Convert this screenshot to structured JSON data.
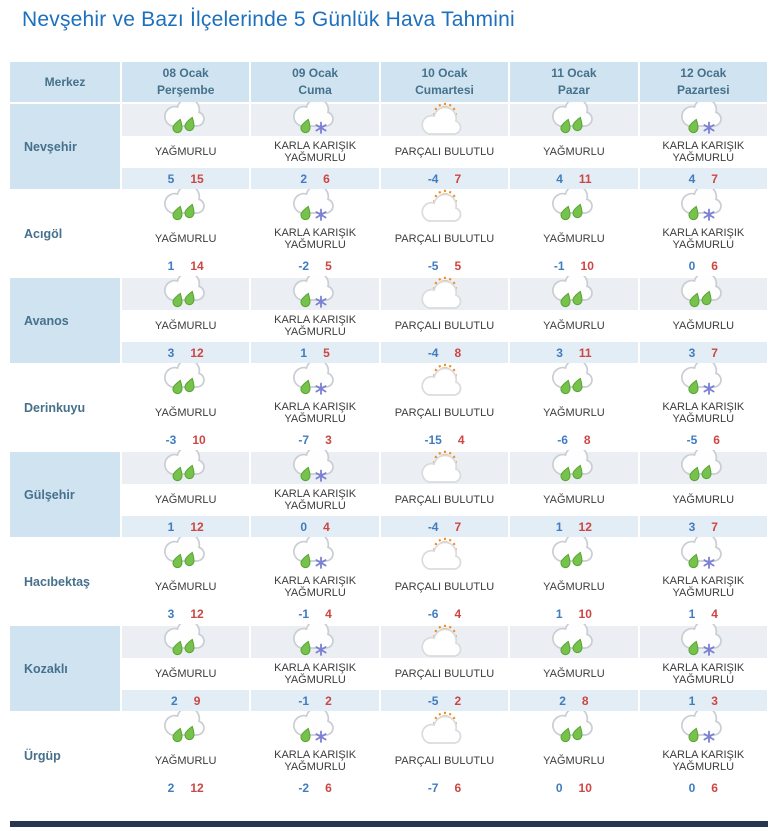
{
  "title": "Nevşehir ve Bazı İlçelerinde 5 Günlük Hava Tahmini",
  "colors": {
    "title_text": "#1d70bd",
    "header_bg": "#cfe4f0",
    "header_text": "#46708c",
    "shaded_icon_bg": "#ebeff4",
    "shaded_temp_bg": "#e3edf5",
    "temp_min": "#3f7cc0",
    "temp_max": "#cc4643",
    "footer_bar": "#27374f"
  },
  "table": {
    "city_header": "Merkez",
    "days": [
      {
        "date": "08 Ocak",
        "weekday": "Perşembe"
      },
      {
        "date": "09 Ocak",
        "weekday": "Cuma"
      },
      {
        "date": "10 Ocak",
        "weekday": "Cumartesi"
      },
      {
        "date": "11 Ocak",
        "weekday": "Pazar"
      },
      {
        "date": "12 Ocak",
        "weekday": "Pazartesi"
      }
    ],
    "icon_names": [
      "rain-icon",
      "sleet-icon",
      "partly-cloudy-icon"
    ],
    "rows": [
      {
        "city": "Nevşehir",
        "cells": [
          {
            "icon": "rain",
            "condition": "YAĞMURLU",
            "min": 5,
            "max": 15
          },
          {
            "icon": "sleet",
            "condition": "KARLA KARIŞIK YAĞMURLU",
            "min": 2,
            "max": 6
          },
          {
            "icon": "partly-cloudy",
            "condition": "PARÇALI BULUTLU",
            "min": -4,
            "max": 7
          },
          {
            "icon": "rain",
            "condition": "YAĞMURLU",
            "min": 4,
            "max": 11
          },
          {
            "icon": "sleet",
            "condition": "KARLA KARIŞIK YAĞMURLU",
            "min": 4,
            "max": 7
          }
        ]
      },
      {
        "city": "Acıgöl",
        "cells": [
          {
            "icon": "rain",
            "condition": "YAĞMURLU",
            "min": 1,
            "max": 14
          },
          {
            "icon": "sleet",
            "condition": "KARLA KARIŞIK YAĞMURLU",
            "min": -2,
            "max": 5
          },
          {
            "icon": "partly-cloudy",
            "condition": "PARÇALI BULUTLU",
            "min": -5,
            "max": 5
          },
          {
            "icon": "rain",
            "condition": "YAĞMURLU",
            "min": -1,
            "max": 10
          },
          {
            "icon": "sleet",
            "condition": "KARLA KARIŞIK YAĞMURLU",
            "min": 0,
            "max": 6
          }
        ]
      },
      {
        "city": "Avanos",
        "cells": [
          {
            "icon": "rain",
            "condition": "YAĞMURLU",
            "min": 3,
            "max": 12
          },
          {
            "icon": "sleet",
            "condition": "KARLA KARIŞIK YAĞMURLU",
            "min": 1,
            "max": 5
          },
          {
            "icon": "partly-cloudy",
            "condition": "PARÇALI BULUTLU",
            "min": -4,
            "max": 8
          },
          {
            "icon": "rain",
            "condition": "YAĞMURLU",
            "min": 3,
            "max": 11
          },
          {
            "icon": "rain",
            "condition": "YAĞMURLU",
            "min": 3,
            "max": 7
          }
        ]
      },
      {
        "city": "Derinkuyu",
        "cells": [
          {
            "icon": "rain",
            "condition": "YAĞMURLU",
            "min": -3,
            "max": 10
          },
          {
            "icon": "sleet",
            "condition": "KARLA KARIŞIK YAĞMURLU",
            "min": -7,
            "max": 3
          },
          {
            "icon": "partly-cloudy",
            "condition": "PARÇALI BULUTLU",
            "min": -15,
            "max": 4
          },
          {
            "icon": "rain",
            "condition": "YAĞMURLU",
            "min": -6,
            "max": 8
          },
          {
            "icon": "sleet",
            "condition": "KARLA KARIŞIK YAĞMURLU",
            "min": -5,
            "max": 6
          }
        ]
      },
      {
        "city": "Gülşehir",
        "cells": [
          {
            "icon": "rain",
            "condition": "YAĞMURLU",
            "min": 1,
            "max": 12
          },
          {
            "icon": "sleet",
            "condition": "KARLA KARIŞIK YAĞMURLU",
            "min": 0,
            "max": 4
          },
          {
            "icon": "partly-cloudy",
            "condition": "PARÇALI BULUTLU",
            "min": -4,
            "max": 7
          },
          {
            "icon": "rain",
            "condition": "YAĞMURLU",
            "min": 1,
            "max": 12
          },
          {
            "icon": "rain",
            "condition": "YAĞMURLU",
            "min": 3,
            "max": 7
          }
        ]
      },
      {
        "city": "Hacıbektaş",
        "cells": [
          {
            "icon": "rain",
            "condition": "YAĞMURLU",
            "min": 3,
            "max": 12
          },
          {
            "icon": "sleet",
            "condition": "KARLA KARIŞIK YAĞMURLU",
            "min": -1,
            "max": 4
          },
          {
            "icon": "partly-cloudy",
            "condition": "PARÇALI BULUTLU",
            "min": -6,
            "max": 4
          },
          {
            "icon": "rain",
            "condition": "YAĞMURLU",
            "min": 1,
            "max": 10
          },
          {
            "icon": "sleet",
            "condition": "KARLA KARIŞIK YAĞMURLU",
            "min": 1,
            "max": 4
          }
        ]
      },
      {
        "city": "Kozaklı",
        "cells": [
          {
            "icon": "rain",
            "condition": "YAĞMURLU",
            "min": 2,
            "max": 9
          },
          {
            "icon": "sleet",
            "condition": "KARLA KARIŞIK YAĞMURLU",
            "min": -1,
            "max": 2
          },
          {
            "icon": "partly-cloudy",
            "condition": "PARÇALI BULUTLU",
            "min": -5,
            "max": 2
          },
          {
            "icon": "rain",
            "condition": "YAĞMURLU",
            "min": 2,
            "max": 8
          },
          {
            "icon": "sleet",
            "condition": "KARLA KARIŞIK YAĞMURLU",
            "min": 1,
            "max": 3
          }
        ]
      },
      {
        "city": "Ürgüp",
        "cells": [
          {
            "icon": "rain",
            "condition": "YAĞMURLU",
            "min": 2,
            "max": 12
          },
          {
            "icon": "sleet",
            "condition": "KARLA KARIŞIK YAĞMURLU",
            "min": -2,
            "max": 6
          },
          {
            "icon": "partly-cloudy",
            "condition": "PARÇALI BULUTLU",
            "min": -7,
            "max": 6
          },
          {
            "icon": "rain",
            "condition": "YAĞMURLU",
            "min": 0,
            "max": 10
          },
          {
            "icon": "sleet",
            "condition": "KARLA KARIŞIK YAĞMURLU",
            "min": 0,
            "max": 6
          }
        ]
      }
    ]
  }
}
